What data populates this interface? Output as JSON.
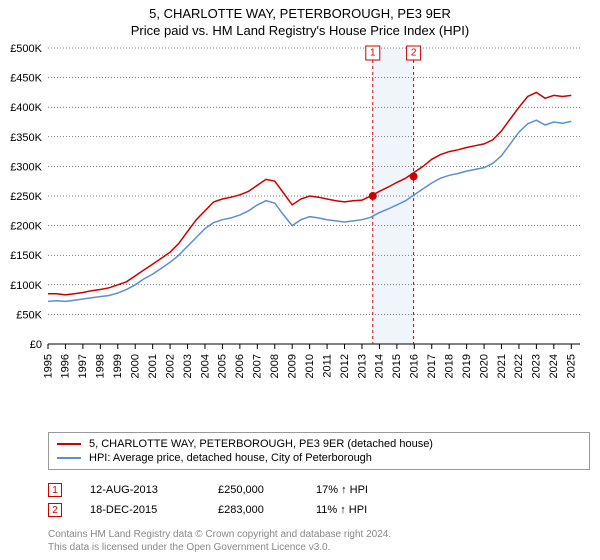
{
  "title": {
    "main": "5, CHARLOTTE WAY, PETERBOROUGH, PE3 9ER",
    "sub": "Price paid vs. HM Land Registry's House Price Index (HPI)"
  },
  "chart": {
    "type": "line",
    "y_min": 0,
    "y_max": 500000,
    "y_step": 50000,
    "y_tick_labels": [
      "£0",
      "£50K",
      "£100K",
      "£150K",
      "£200K",
      "£250K",
      "£300K",
      "£350K",
      "£400K",
      "£450K",
      "£500K"
    ],
    "x_min": 1995,
    "x_max": 2025.5,
    "x_ticks": [
      1995,
      1996,
      1997,
      1998,
      1999,
      2000,
      2001,
      2002,
      2003,
      2004,
      2005,
      2006,
      2007,
      2008,
      2009,
      2010,
      2011,
      2012,
      2013,
      2014,
      2015,
      2016,
      2017,
      2018,
      2019,
      2020,
      2021,
      2022,
      2023,
      2024,
      2025
    ],
    "background_color": "#ffffff",
    "grid_color": "#000000",
    "series": [
      {
        "name": "property",
        "label": "5, CHARLOTTE WAY, PETERBOROUGH, PE3 9ER (detached house)",
        "color": "#cc0000",
        "points": [
          [
            1995,
            85000
          ],
          [
            1995.5,
            85000
          ],
          [
            1996,
            83000
          ],
          [
            1996.5,
            85000
          ],
          [
            1997,
            87000
          ],
          [
            1997.5,
            90000
          ],
          [
            1998,
            92000
          ],
          [
            1998.5,
            95000
          ],
          [
            1999,
            100000
          ],
          [
            1999.5,
            105000
          ],
          [
            2000,
            115000
          ],
          [
            2000.5,
            125000
          ],
          [
            2001,
            135000
          ],
          [
            2001.5,
            145000
          ],
          [
            2002,
            155000
          ],
          [
            2002.5,
            170000
          ],
          [
            2003,
            190000
          ],
          [
            2003.5,
            210000
          ],
          [
            2004,
            225000
          ],
          [
            2004.5,
            240000
          ],
          [
            2005,
            245000
          ],
          [
            2005.5,
            248000
          ],
          [
            2006,
            252000
          ],
          [
            2006.5,
            258000
          ],
          [
            2007,
            268000
          ],
          [
            2007.5,
            278000
          ],
          [
            2008,
            275000
          ],
          [
            2008.5,
            255000
          ],
          [
            2009,
            235000
          ],
          [
            2009.5,
            245000
          ],
          [
            2010,
            250000
          ],
          [
            2010.5,
            248000
          ],
          [
            2011,
            245000
          ],
          [
            2011.5,
            242000
          ],
          [
            2012,
            240000
          ],
          [
            2012.5,
            242000
          ],
          [
            2013,
            243000
          ],
          [
            2013.5,
            250000
          ],
          [
            2014,
            258000
          ],
          [
            2014.5,
            265000
          ],
          [
            2015,
            273000
          ],
          [
            2015.5,
            280000
          ],
          [
            2016,
            290000
          ],
          [
            2016.5,
            300000
          ],
          [
            2017,
            312000
          ],
          [
            2017.5,
            320000
          ],
          [
            2018,
            325000
          ],
          [
            2018.5,
            328000
          ],
          [
            2019,
            332000
          ],
          [
            2019.5,
            335000
          ],
          [
            2020,
            338000
          ],
          [
            2020.5,
            345000
          ],
          [
            2021,
            360000
          ],
          [
            2021.5,
            380000
          ],
          [
            2022,
            400000
          ],
          [
            2022.5,
            418000
          ],
          [
            2023,
            425000
          ],
          [
            2023.5,
            415000
          ],
          [
            2024,
            420000
          ],
          [
            2024.5,
            418000
          ],
          [
            2025,
            420000
          ]
        ]
      },
      {
        "name": "hpi",
        "label": "HPI: Average price, detached house, City of Peterborough",
        "color": "#5b8fd4",
        "points": [
          [
            1995,
            72000
          ],
          [
            1995.5,
            73000
          ],
          [
            1996,
            72000
          ],
          [
            1996.5,
            74000
          ],
          [
            1997,
            76000
          ],
          [
            1997.5,
            78000
          ],
          [
            1998,
            80000
          ],
          [
            1998.5,
            82000
          ],
          [
            1999,
            86000
          ],
          [
            1999.5,
            92000
          ],
          [
            2000,
            100000
          ],
          [
            2000.5,
            110000
          ],
          [
            2001,
            118000
          ],
          [
            2001.5,
            128000
          ],
          [
            2002,
            138000
          ],
          [
            2002.5,
            150000
          ],
          [
            2003,
            165000
          ],
          [
            2003.5,
            180000
          ],
          [
            2004,
            195000
          ],
          [
            2004.5,
            205000
          ],
          [
            2005,
            210000
          ],
          [
            2005.5,
            213000
          ],
          [
            2006,
            218000
          ],
          [
            2006.5,
            225000
          ],
          [
            2007,
            235000
          ],
          [
            2007.5,
            242000
          ],
          [
            2008,
            238000
          ],
          [
            2008.5,
            218000
          ],
          [
            2009,
            200000
          ],
          [
            2009.5,
            210000
          ],
          [
            2010,
            215000
          ],
          [
            2010.5,
            213000
          ],
          [
            2011,
            210000
          ],
          [
            2011.5,
            208000
          ],
          [
            2012,
            206000
          ],
          [
            2012.5,
            208000
          ],
          [
            2013,
            210000
          ],
          [
            2013.5,
            214000
          ],
          [
            2014,
            222000
          ],
          [
            2014.5,
            228000
          ],
          [
            2015,
            235000
          ],
          [
            2015.5,
            242000
          ],
          [
            2016,
            252000
          ],
          [
            2016.5,
            262000
          ],
          [
            2017,
            272000
          ],
          [
            2017.5,
            280000
          ],
          [
            2018,
            285000
          ],
          [
            2018.5,
            288000
          ],
          [
            2019,
            292000
          ],
          [
            2019.5,
            295000
          ],
          [
            2020,
            298000
          ],
          [
            2020.5,
            305000
          ],
          [
            2021,
            318000
          ],
          [
            2021.5,
            338000
          ],
          [
            2022,
            358000
          ],
          [
            2022.5,
            372000
          ],
          [
            2023,
            378000
          ],
          [
            2023.5,
            370000
          ],
          [
            2024,
            375000
          ],
          [
            2024.5,
            373000
          ],
          [
            2025,
            376000
          ]
        ]
      }
    ],
    "transactions": [
      {
        "n": 1,
        "date_label": "12-AUG-2013",
        "x": 2013.62,
        "price": 250000,
        "price_label": "£250,000",
        "diff": "17% ↑ HPI",
        "color": "#cc0000"
      },
      {
        "n": 2,
        "date_label": "18-DEC-2015",
        "x": 2015.96,
        "price": 283000,
        "price_label": "£283,000",
        "diff": "11% ↑ HPI",
        "color": "#cc0000"
      }
    ],
    "band_color": "#d9e6f5"
  },
  "footer": {
    "line1": "Contains HM Land Registry data © Crown copyright and database right 2024.",
    "line2": "This data is licensed under the Open Government Licence v3.0."
  }
}
